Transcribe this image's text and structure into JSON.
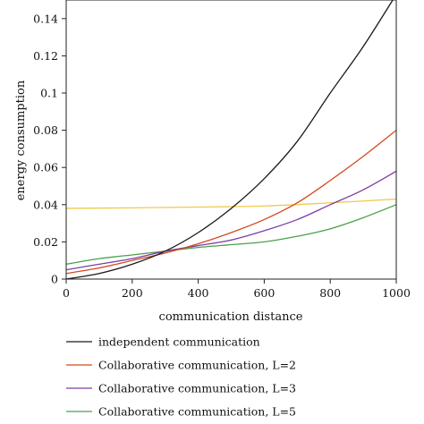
{
  "chart_data": {
    "type": "line",
    "title": "",
    "xlabel": "communication distance",
    "ylabel": "energy consumption",
    "xlim": [
      0,
      1000
    ],
    "ylim": [
      0,
      0.15
    ],
    "xticks": [
      0,
      200,
      400,
      600,
      800,
      1000
    ],
    "xtick_labels": [
      "0",
      "200",
      "400",
      "600",
      "800",
      "1000"
    ],
    "yticks": [
      0,
      0.02,
      0.04,
      0.06,
      0.08,
      0.1,
      0.12,
      0.14
    ],
    "ytick_labels": [
      "0",
      "0.02",
      "0.04",
      "0.06",
      "0.08",
      "0.1",
      "0.12",
      "0.14"
    ],
    "grid": false,
    "legend_position": "bottom",
    "series": [
      {
        "name": "independent communication",
        "color": "#1a1a1a",
        "x": [
          0,
          100,
          200,
          300,
          400,
          500,
          600,
          700,
          800,
          900,
          1000
        ],
        "y": [
          0.0,
          0.003,
          0.008,
          0.015,
          0.025,
          0.038,
          0.054,
          0.074,
          0.1,
          0.125,
          0.153
        ]
      },
      {
        "name": "Collaborative communication, L=2",
        "color": "#d24a1e",
        "x": [
          0,
          100,
          200,
          300,
          400,
          500,
          600,
          700,
          800,
          900,
          1000
        ],
        "y": [
          0.003,
          0.006,
          0.01,
          0.014,
          0.019,
          0.025,
          0.032,
          0.041,
          0.053,
          0.066,
          0.08
        ]
      },
      {
        "name": "Collaborative communication, L=3",
        "color": "#7b3ea6",
        "x": [
          0,
          100,
          200,
          300,
          400,
          500,
          600,
          700,
          800,
          900,
          1000
        ],
        "y": [
          0.005,
          0.008,
          0.011,
          0.015,
          0.018,
          0.021,
          0.026,
          0.032,
          0.04,
          0.048,
          0.058
        ]
      },
      {
        "name": "Collaborative communication, L=5",
        "color": "#4aa04a",
        "x": [
          0,
          100,
          200,
          300,
          400,
          500,
          600,
          700,
          800,
          900,
          1000
        ],
        "y": [
          0.008,
          0.011,
          0.013,
          0.015,
          0.017,
          0.0185,
          0.02,
          0.023,
          0.027,
          0.033,
          0.04
        ]
      },
      {
        "name": "",
        "color": "#f2c94c",
        "x": [
          0,
          200,
          400,
          600,
          800,
          1000
        ],
        "y": [
          0.038,
          0.0383,
          0.0387,
          0.0393,
          0.041,
          0.043
        ]
      }
    ]
  }
}
